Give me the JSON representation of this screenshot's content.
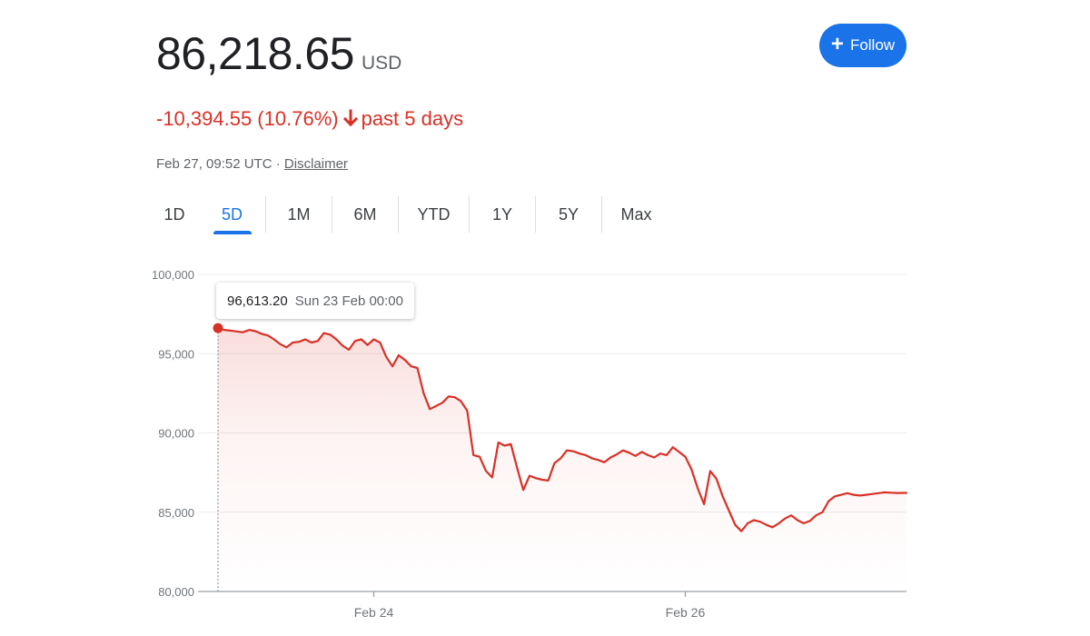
{
  "header": {
    "price": "86,218.65",
    "currency": "USD",
    "change_text": "-10,394.55 (10.76%)",
    "change_direction": "down",
    "change_period": "past 5 days",
    "timestamp": "Feb 27, 09:52 UTC",
    "separator": "·",
    "disclaimer": "Disclaimer",
    "follow_label": "Follow",
    "follow_icon": "plus-icon"
  },
  "range_tabs": [
    {
      "label": "1D",
      "active": false
    },
    {
      "label": "5D",
      "active": true
    },
    {
      "label": "1M",
      "active": false
    },
    {
      "label": "6M",
      "active": false
    },
    {
      "label": "YTD",
      "active": false
    },
    {
      "label": "1Y",
      "active": false
    },
    {
      "label": "5Y",
      "active": false
    },
    {
      "label": "Max",
      "active": false
    }
  ],
  "tooltip": {
    "value": "96,613.20",
    "date": "Sun 23 Feb 00:00"
  },
  "colors": {
    "line": "#d93025",
    "fill": "#fce8e6",
    "accent": "#1a73e8",
    "negative": "#d93025"
  },
  "chart_data": {
    "type": "area",
    "x_unit": "days since Feb 23 00:00",
    "x_range": [
      0,
      4.42
    ],
    "ylim": [
      80000,
      100000
    ],
    "yticks": [
      {
        "value": 80000,
        "label": "80,000"
      },
      {
        "value": 85000,
        "label": "85,000"
      },
      {
        "value": 90000,
        "label": "90,000"
      },
      {
        "value": 95000,
        "label": "95,000"
      },
      {
        "value": 100000,
        "label": "100,000"
      }
    ],
    "xticks": [
      {
        "value": 1.0,
        "label": "Feb 24"
      },
      {
        "value": 3.0,
        "label": "Feb 26"
      }
    ],
    "grid": true,
    "highlight_point": {
      "x": 0.0,
      "y": 96613.2
    },
    "x": [
      0,
      0.04,
      0.08,
      0.12,
      0.16,
      0.2,
      0.24,
      0.28,
      0.32,
      0.36,
      0.4,
      0.44,
      0.48,
      0.52,
      0.56,
      0.6,
      0.64,
      0.68,
      0.72,
      0.76,
      0.8,
      0.84,
      0.88,
      0.92,
      0.96,
      1,
      1.04,
      1.08,
      1.12,
      1.16,
      1.2,
      1.24,
      1.28,
      1.32,
      1.36,
      1.4,
      1.44,
      1.48,
      1.52,
      1.56,
      1.6,
      1.64,
      1.68,
      1.72,
      1.76,
      1.8,
      1.84,
      1.88,
      1.92,
      1.96,
      2,
      2.04,
      2.08,
      2.12,
      2.16,
      2.2,
      2.24,
      2.28,
      2.32,
      2.36,
      2.4,
      2.44,
      2.48,
      2.52,
      2.56,
      2.6,
      2.64,
      2.68,
      2.72,
      2.76,
      2.8,
      2.84,
      2.88,
      2.92,
      2.96,
      3,
      3.04,
      3.08,
      3.12,
      3.16,
      3.2,
      3.24,
      3.28,
      3.32,
      3.36,
      3.4,
      3.44,
      3.48,
      3.52,
      3.56,
      3.6,
      3.64,
      3.68,
      3.72,
      3.76,
      3.8,
      3.84,
      3.88,
      3.92,
      3.96,
      4,
      4.04,
      4.08,
      4.12,
      4.16,
      4.2,
      4.24,
      4.28,
      4.32,
      4.36,
      4.4,
      4.42
    ],
    "y": [
      96613,
      96500,
      96450,
      96400,
      96350,
      96500,
      96420,
      96250,
      96150,
      95900,
      95600,
      95400,
      95700,
      95750,
      95900,
      95700,
      95800,
      96300,
      96200,
      95900,
      95500,
      95250,
      95800,
      95900,
      95550,
      95900,
      95700,
      94800,
      94200,
      94900,
      94600,
      94200,
      94100,
      92500,
      91500,
      91700,
      91900,
      92300,
      92250,
      92000,
      91400,
      88600,
      88500,
      87600,
      87200,
      89400,
      89200,
      89300,
      87800,
      86400,
      87300,
      87150,
      87050,
      87000,
      88100,
      88400,
      88900,
      88850,
      88700,
      88600,
      88400,
      88300,
      88150,
      88450,
      88650,
      88900,
      88750,
      88550,
      88800,
      88600,
      88450,
      88700,
      88600,
      89100,
      88800,
      88500,
      87700,
      86500,
      85500,
      87600,
      87100,
      86000,
      85100,
      84200,
      83800,
      84300,
      84500,
      84400,
      84200,
      84050,
      84300,
      84600,
      84800,
      84500,
      84300,
      84450,
      84800,
      85000,
      85700,
      86000,
      86100,
      86200,
      86100,
      86050,
      86100,
      86150,
      86200,
      86250,
      86230,
      86210,
      86219,
      86219
    ]
  }
}
